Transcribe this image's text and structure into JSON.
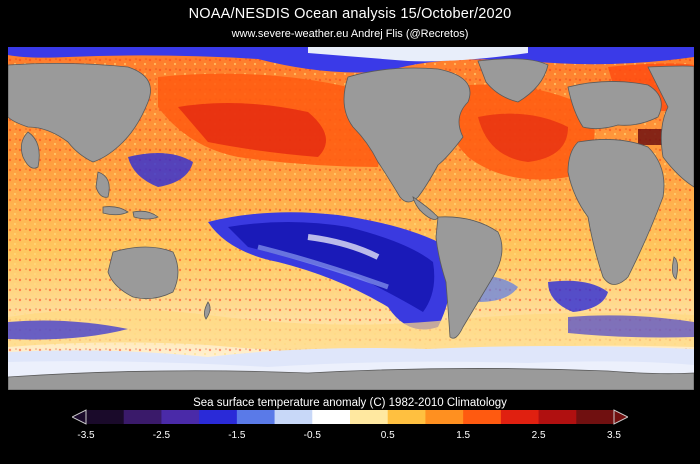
{
  "header": {
    "title": "NOAA/NESDIS Ocean analysis    15/October/2020",
    "credit": "www.severe-weather.eu   Andrej Flis (@Recretos)"
  },
  "legend": {
    "title": "Sea surface temperature anomaly (C)    1982-2010 Climatology",
    "ticks": [
      "-3.5",
      "-2.5",
      "-1.5",
      "-0.5",
      "0.5",
      "1.5",
      "2.5",
      "3.5"
    ],
    "colors": [
      "#1a0a2a",
      "#3a1a6a",
      "#4a2aa8",
      "#2a2ad8",
      "#5a7ae8",
      "#c8d8f8",
      "#ffffff",
      "#ffe8a0",
      "#ffc040",
      "#ff9020",
      "#ff5a10",
      "#e02010",
      "#b01010",
      "#701010"
    ]
  },
  "map": {
    "land_color": "#9a9a9a",
    "ocean_warm": "#ff6a1a",
    "ocean_cold": "#1a1ad0",
    "ice": "#e8eefa",
    "features": [
      "cold-tongue-equatorial-pacific",
      "warm-north-pacific",
      "warm-north-atlantic",
      "antarctic-ice"
    ]
  }
}
